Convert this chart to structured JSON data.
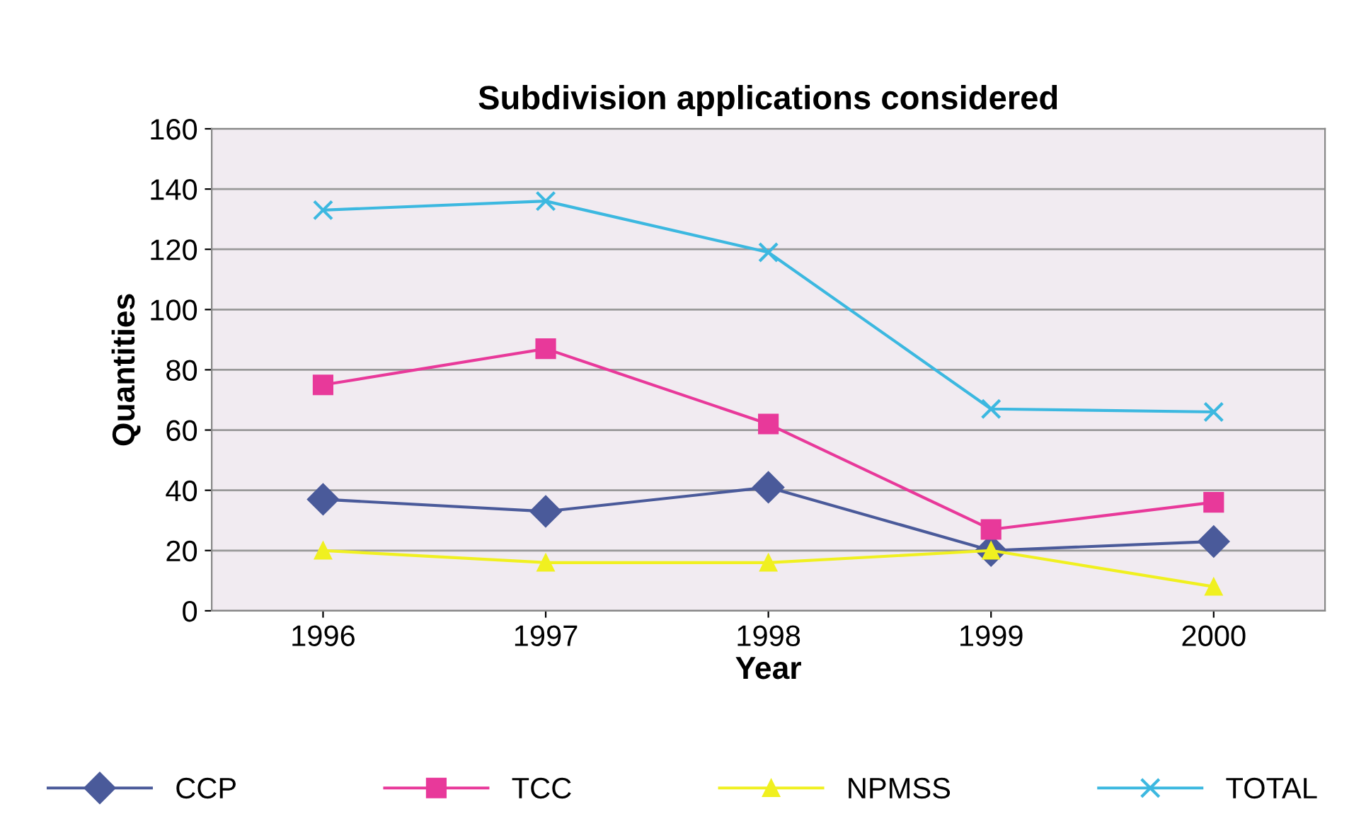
{
  "chart_data": {
    "type": "line",
    "title": "Subdivision applications considered",
    "xlabel": "Year",
    "ylabel": "Quantities",
    "categories": [
      "1996",
      "1997",
      "1998",
      "1999",
      "2000"
    ],
    "series": [
      {
        "name": "CCP",
        "color": "#4a5a9a",
        "marker": "diamond",
        "values": [
          37,
          33,
          41,
          20,
          23
        ]
      },
      {
        "name": "TCC",
        "color": "#e8399a",
        "marker": "square",
        "values": [
          75,
          87,
          62,
          27,
          36
        ]
      },
      {
        "name": "NPMSS",
        "color": "#f0f020",
        "marker": "triangle",
        "values": [
          20,
          16,
          16,
          20,
          8
        ]
      },
      {
        "name": "TOTAL",
        "color": "#3cb8e0",
        "marker": "cross",
        "values": [
          133,
          136,
          119,
          67,
          66
        ]
      }
    ],
    "ylim": [
      0,
      160
    ],
    "yticks": [
      0,
      20,
      40,
      60,
      80,
      100,
      120,
      140,
      160
    ],
    "grid": "y",
    "legend": "bottom",
    "line_style": "solid"
  }
}
